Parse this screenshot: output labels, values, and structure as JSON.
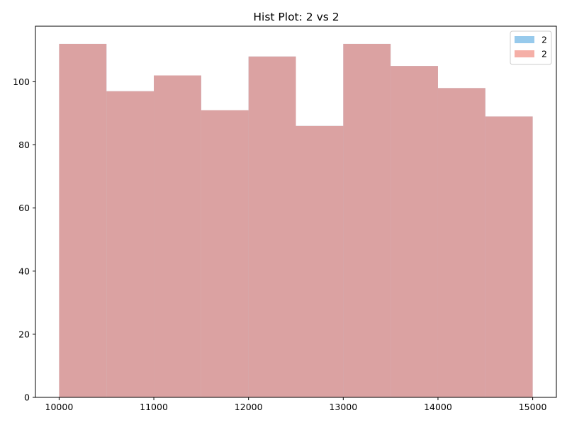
{
  "chart_data": {
    "type": "bar",
    "title": "Hist Plot: 2 vs 2",
    "xlabel": "",
    "ylabel": "",
    "bin_edges": [
      10000,
      10500,
      11000,
      11500,
      12000,
      12500,
      13000,
      13500,
      14000,
      14500,
      15000
    ],
    "series": [
      {
        "name": "2",
        "color": "#85C1E9",
        "opacity": 0.85,
        "values": [
          112,
          97,
          102,
          91,
          108,
          86,
          112,
          105,
          98,
          89
        ]
      },
      {
        "name": "2",
        "color": "#F1948A",
        "opacity": 0.75,
        "values": [
          112,
          97,
          102,
          91,
          108,
          86,
          112,
          105,
          98,
          89
        ]
      }
    ],
    "xlim": [
      9750,
      15250
    ],
    "ylim": [
      0,
      117.6
    ],
    "xticks": [
      10000,
      11000,
      12000,
      13000,
      14000,
      15000
    ],
    "yticks": [
      0,
      20,
      40,
      60,
      80,
      100
    ],
    "legend_position": "top-right",
    "grid": false
  }
}
